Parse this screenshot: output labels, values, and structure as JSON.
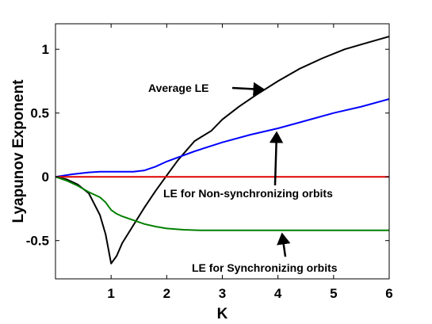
{
  "chart_data": {
    "type": "line",
    "title": "",
    "xlabel": "K",
    "ylabel": "Lyapunov Exponent",
    "xlim": [
      0,
      6
    ],
    "ylim": [
      -0.8,
      1.2
    ],
    "xticks": [
      1,
      2,
      3,
      4,
      5,
      6
    ],
    "xtick_labels": [
      "1",
      "2",
      "3",
      "4",
      "5",
      "6"
    ],
    "yticks": [
      -0.5,
      0,
      0.5,
      1
    ],
    "ytick_labels": [
      "-0.5",
      "0",
      "0.5",
      "1"
    ],
    "grid": false,
    "series": [
      {
        "key": "avg",
        "color": "#000000",
        "x": [
          0.0,
          0.2,
          0.4,
          0.6,
          0.8,
          0.9,
          1.0,
          1.1,
          1.2,
          1.4,
          1.6,
          1.8,
          2.0,
          2.2,
          2.5,
          2.8,
          3.0,
          3.3,
          3.6,
          4.0,
          4.4,
          4.8,
          5.2,
          5.6,
          6.0
        ],
        "y": [
          0.0,
          -0.02,
          -0.06,
          -0.13,
          -0.3,
          -0.45,
          -0.68,
          -0.62,
          -0.52,
          -0.38,
          -0.24,
          -0.11,
          0.01,
          0.13,
          0.28,
          0.36,
          0.45,
          0.55,
          0.64,
          0.75,
          0.85,
          0.93,
          1.0,
          1.05,
          1.1
        ]
      },
      {
        "key": "non_sync",
        "color": "#0000ff",
        "x": [
          0.0,
          0.3,
          0.6,
          0.8,
          1.0,
          1.2,
          1.4,
          1.6,
          1.8,
          2.0,
          2.5,
          3.0,
          3.5,
          4.0,
          4.5,
          5.0,
          5.5,
          6.0
        ],
        "y": [
          0.0,
          0.02,
          0.035,
          0.04,
          0.04,
          0.04,
          0.04,
          0.05,
          0.08,
          0.12,
          0.2,
          0.27,
          0.33,
          0.38,
          0.44,
          0.5,
          0.55,
          0.61
        ]
      },
      {
        "key": "zero",
        "color": "#e00000",
        "x": [
          0.0,
          6.0
        ],
        "y": [
          0.0,
          0.0
        ]
      },
      {
        "key": "sync",
        "color": "#008000",
        "x": [
          0.0,
          0.2,
          0.4,
          0.6,
          0.8,
          0.9,
          1.0,
          1.1,
          1.2,
          1.4,
          1.6,
          1.8,
          2.0,
          2.3,
          2.6,
          3.0,
          3.5,
          4.0,
          5.0,
          6.0
        ],
        "y": [
          0.0,
          -0.03,
          -0.07,
          -0.12,
          -0.16,
          -0.2,
          -0.26,
          -0.29,
          -0.31,
          -0.34,
          -0.37,
          -0.39,
          -0.405,
          -0.415,
          -0.42,
          -0.42,
          -0.42,
          -0.42,
          -0.42,
          -0.42
        ]
      }
    ],
    "annotations": [
      {
        "key": "avg",
        "text": "Average LE",
        "arrow": "right"
      },
      {
        "key": "non_sync",
        "text": "LE for Non-synchronizing orbits",
        "arrow": "up"
      },
      {
        "key": "sync",
        "text": "LE for Synchronizing orbits",
        "arrow": "up"
      }
    ]
  }
}
